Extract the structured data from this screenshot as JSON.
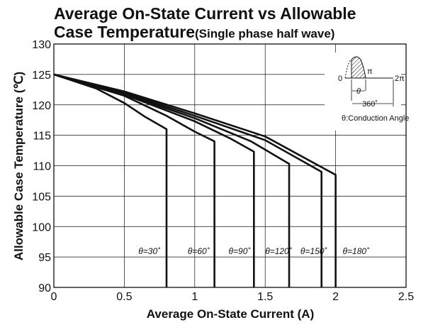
{
  "chart_data": {
    "type": "line",
    "title_line1": "Average On-State Current vs Allowable",
    "title_line2": "Case Temperature",
    "title_paren": "(Single phase half wave)",
    "xlabel": "Average On-State Current (A)",
    "ylabel": "Allowable Case Temperature (℃)",
    "xlim": [
      0,
      2.5
    ],
    "ylim": [
      90,
      130
    ],
    "xticks": [
      0,
      0.5,
      1,
      1.5,
      2,
      2.5
    ],
    "xtick_labels": [
      "0",
      "0.5",
      "1",
      "1.5",
      "2",
      "2.5"
    ],
    "yticks": [
      90,
      95,
      100,
      105,
      110,
      115,
      120,
      125,
      130
    ],
    "ytick_labels": [
      "90",
      "95",
      "100",
      "105",
      "110",
      "115",
      "120",
      "125",
      "130"
    ],
    "grid": true,
    "series": [
      {
        "name": "θ=30˚",
        "x": [
          0,
          0.3,
          0.5,
          0.65,
          0.8,
          0.8
        ],
        "y": [
          125,
          122.7,
          120.3,
          118,
          116,
          90
        ]
      },
      {
        "name": "θ=60˚",
        "x": [
          0,
          0.5,
          0.8,
          1.0,
          1.14,
          1.14
        ],
        "y": [
          125,
          121.5,
          118.2,
          115.6,
          114,
          90
        ]
      },
      {
        "name": "θ=90˚",
        "x": [
          0,
          0.5,
          1.0,
          1.25,
          1.42,
          1.42
        ],
        "y": [
          125,
          121.7,
          117.3,
          114.5,
          112.3,
          90
        ]
      },
      {
        "name": "θ=120˚",
        "x": [
          0,
          0.5,
          1.0,
          1.4,
          1.67,
          1.67
        ],
        "y": [
          125,
          121.8,
          117.8,
          114,
          110.3,
          90
        ]
      },
      {
        "name": "θ=150˚",
        "x": [
          0,
          0.5,
          1.0,
          1.5,
          1.9,
          1.9
        ],
        "y": [
          125,
          122,
          118.2,
          114.2,
          109,
          90
        ]
      },
      {
        "name": "θ=180˚",
        "x": [
          0,
          0.5,
          1.0,
          1.5,
          2.0,
          2.0
        ],
        "y": [
          125,
          122.2,
          118.6,
          114.8,
          108.5,
          90
        ]
      }
    ],
    "series_labels": [
      {
        "text": "θ=30˚",
        "x": 0.6,
        "y": 95
      },
      {
        "text": "θ=60˚",
        "x": 0.95,
        "y": 95
      },
      {
        "text": "θ=90˚",
        "x": 1.24,
        "y": 95
      },
      {
        "text": "θ=120˚",
        "x": 1.5,
        "y": 95
      },
      {
        "text": "θ=150˚",
        "x": 1.75,
        "y": 95
      },
      {
        "text": "θ=180˚",
        "x": 2.05,
        "y": 95
      }
    ],
    "inset": {
      "zero": "0",
      "pi": "π",
      "two_pi": "2π",
      "theta": "θ",
      "degrees": "360˚",
      "caption": "θ:Conduction Angle"
    }
  }
}
